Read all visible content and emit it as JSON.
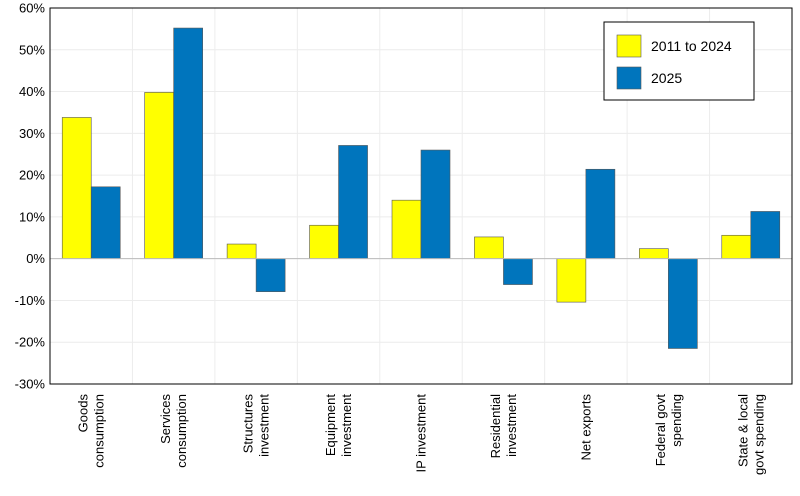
{
  "chart_data": {
    "type": "bar",
    "categories": [
      [
        "Goods",
        "consumption"
      ],
      [
        "Services",
        "consumption"
      ],
      [
        "Structures",
        "investment"
      ],
      [
        "Equipment",
        "investment"
      ],
      [
        "IP investment"
      ],
      [
        "Residential",
        "investment"
      ],
      [
        "Net exports"
      ],
      [
        "Federal govt",
        "spending"
      ],
      [
        "State & local",
        "govt spending"
      ]
    ],
    "series": [
      {
        "name": "2011 to 2024",
        "color": "#ffff00",
        "values": [
          33.8,
          39.8,
          3.5,
          8.0,
          14.0,
          5.2,
          -10.4,
          2.4,
          5.6
        ]
      },
      {
        "name": "2025",
        "color": "#0075bd",
        "values": [
          17.2,
          55.2,
          -7.9,
          27.1,
          26.0,
          -6.2,
          21.4,
          -21.5,
          11.3
        ]
      }
    ],
    "yticks": [
      "60%",
      "50%",
      "40%",
      "30%",
      "20%",
      "10%",
      "0%",
      "-10%",
      "-20%",
      "-30%"
    ],
    "ylim": [
      -30,
      60
    ],
    "legend_position": "top-right",
    "grid": true
  }
}
